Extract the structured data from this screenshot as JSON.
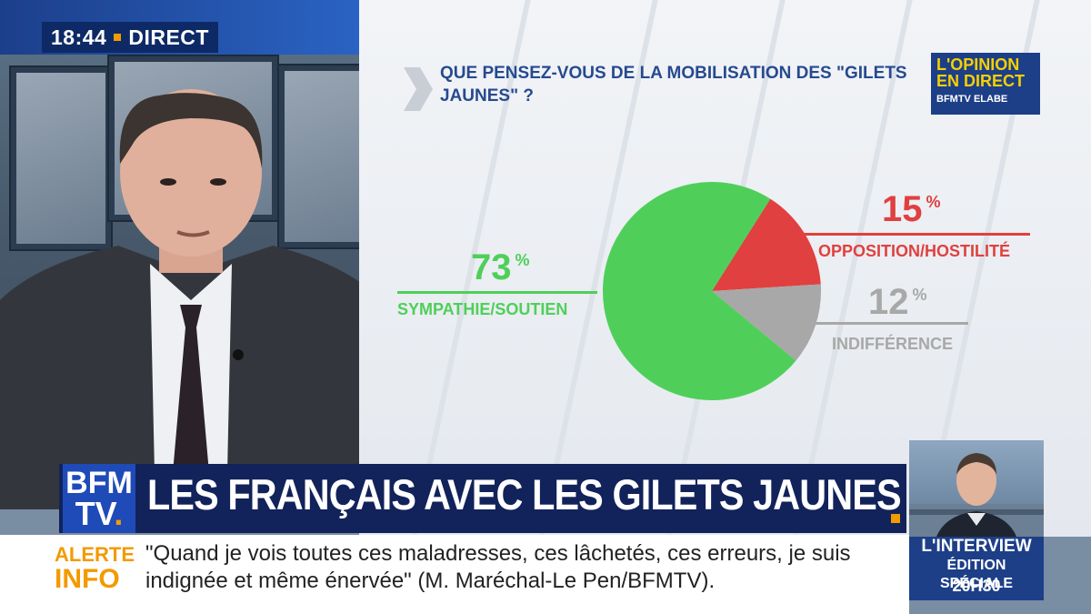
{
  "live": {
    "time": "18:44",
    "label": "DIRECT"
  },
  "question": "QUE PENSEZ-VOUS DE LA MOBILISATION DES \"GILETS JAUNES\" ?",
  "opinion_logo": {
    "line1": "L'OPINION",
    "line2": "EN DIRECT",
    "brand": "BFMTV",
    "partner": "ELABE"
  },
  "chart_data": {
    "type": "pie",
    "title": "QUE PENSEZ-VOUS DE LA MOBILISATION DES \"GILETS JAUNES\" ?",
    "slices": [
      {
        "label": "SYMPATHIE/SOUTIEN",
        "value": 73,
        "color": "#4fcf5a"
      },
      {
        "label": "OPPOSITION/HOSTILITÉ",
        "value": 15,
        "color": "#e0403f"
      },
      {
        "label": "INDIFFÉRENCE",
        "value": 12,
        "color": "#a8a8a8"
      }
    ],
    "unit": "%"
  },
  "pie_labels": {
    "sympathie": {
      "value": "73",
      "unit": "%",
      "label": "SYMPATHIE/SOUTIEN"
    },
    "opposition": {
      "value": "15",
      "unit": "%",
      "label": "OPPOSITION/HOSTILITÉ"
    },
    "indifference": {
      "value": "12",
      "unit": "%",
      "label": "INDIFFÉRENCE"
    }
  },
  "colors": {
    "green": "#4fcf5a",
    "red": "#e0403f",
    "grey": "#a8a8a8",
    "navy": "#12225a",
    "orange": "#f39a00"
  },
  "channel_logo": {
    "line1": "BFM",
    "line2": "TV"
  },
  "headline": "LES FRANÇAIS AVEC LES GILETS JAUNES",
  "alert": {
    "line1": "ALERTE",
    "line2": "INFO"
  },
  "ticker": "\"Quand je vois toutes ces maladresses, ces lâchetés, ces erreurs, je suis indignée et même énervée\" (M. Maréchal-Le Pen/BFMTV).",
  "interview": {
    "title": "L'INTERVIEW",
    "subtitle": "ÉDITION SPÉCIALE",
    "time": "20H30"
  }
}
